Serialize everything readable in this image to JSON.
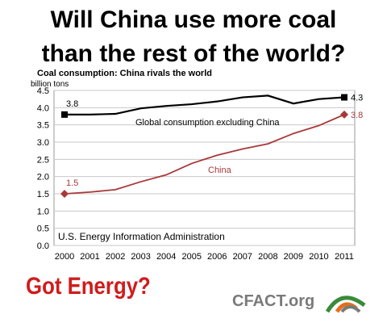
{
  "headline": {
    "line1": "Will China use more coal",
    "line2": "than the rest of the world?"
  },
  "chart_data": {
    "type": "line",
    "title": "Coal consumption: China rivals the world",
    "unit_label": "billion tons",
    "source": "U.S. Energy Information Administration",
    "x": [
      2000,
      2001,
      2002,
      2003,
      2004,
      2005,
      2006,
      2007,
      2008,
      2009,
      2010,
      2011
    ],
    "x_tick_labels": [
      "2000",
      "2001",
      "2002",
      "2003",
      "2004",
      "2005",
      "2006",
      "2007",
      "2008",
      "2009",
      "2010",
      "2011"
    ],
    "y_ticks": [
      "0.0",
      "0.5",
      "1.0",
      "1.5",
      "2.0",
      "2.5",
      "3.0",
      "3.5",
      "4.0",
      "4.5"
    ],
    "ylim": [
      0,
      4.5
    ],
    "grid": "horizontal",
    "series": [
      {
        "name": "Global consumption excluding China",
        "color": "#000000",
        "marker": "square",
        "values": [
          3.8,
          3.8,
          3.82,
          3.98,
          4.05,
          4.1,
          4.18,
          4.3,
          4.35,
          4.12,
          4.25,
          4.3
        ],
        "start_label": "3.8",
        "end_label": "4.3"
      },
      {
        "name": "China",
        "color": "#a83838",
        "marker": "diamond",
        "values": [
          1.5,
          1.55,
          1.62,
          1.85,
          2.05,
          2.38,
          2.62,
          2.8,
          2.95,
          3.25,
          3.48,
          3.8
        ],
        "start_label": "1.5",
        "end_label": "3.8"
      }
    ]
  },
  "footer": {
    "slogan": "Got Energy?",
    "brand": "CFACT.org",
    "logo_icon": "cfact-arch-logo-icon",
    "slogan_color": "#d01c1c"
  }
}
